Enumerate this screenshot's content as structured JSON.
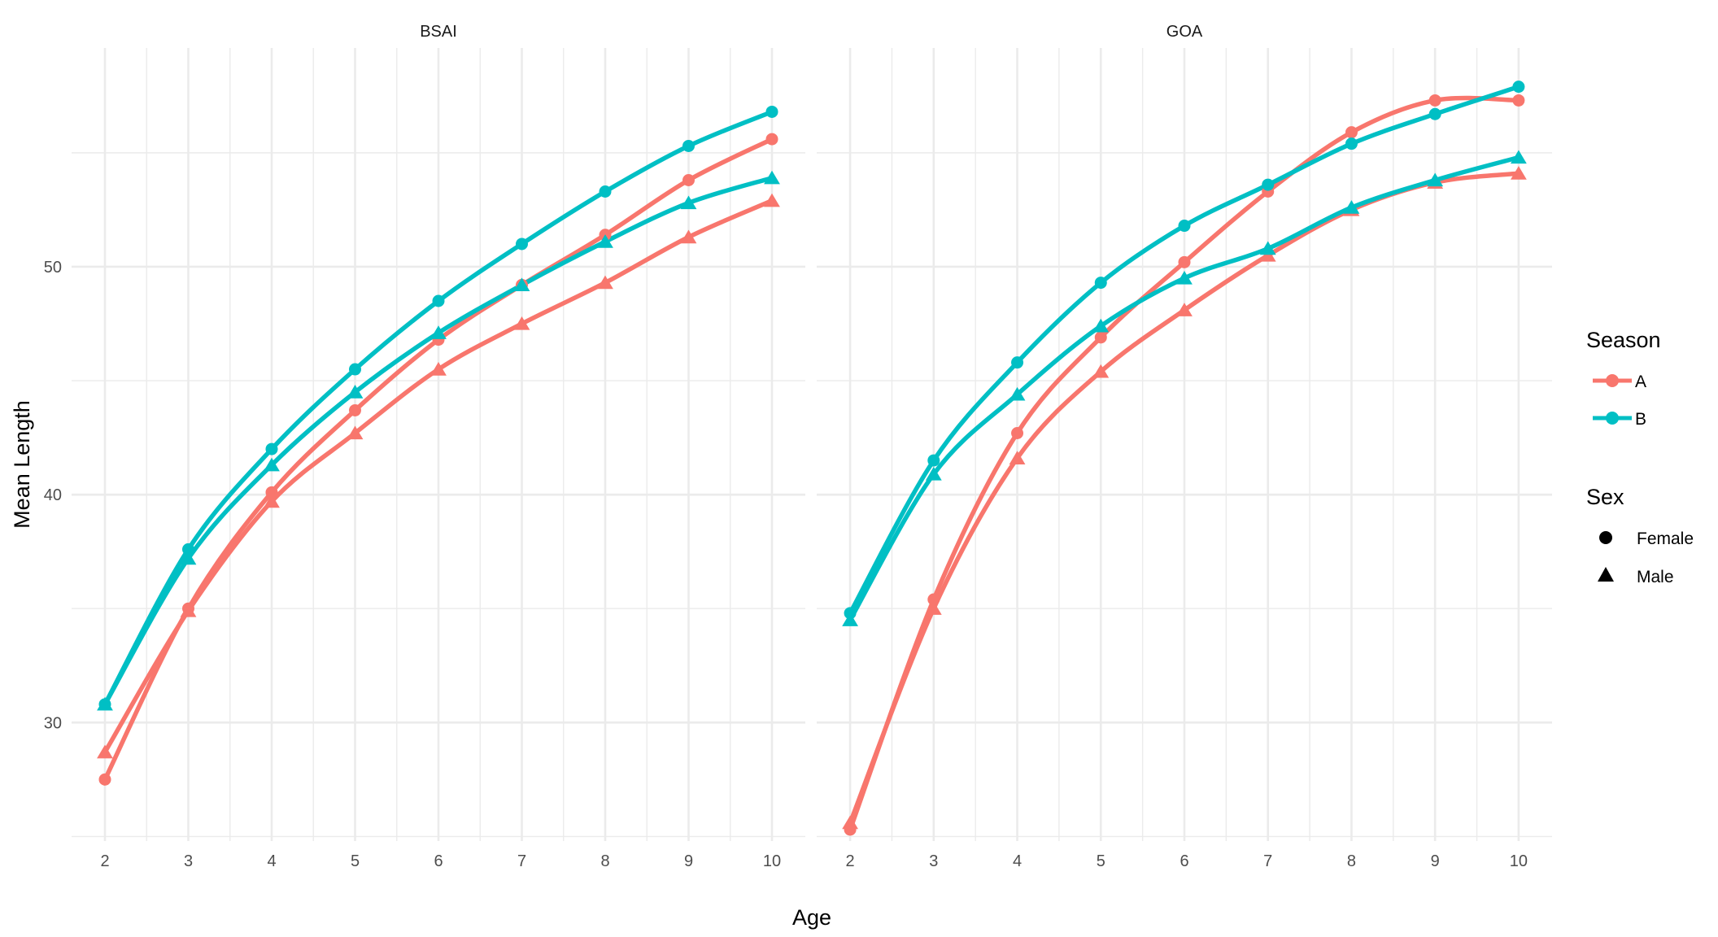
{
  "chart_data": {
    "type": "line",
    "facets": [
      "BSAI",
      "GOA"
    ],
    "x": [
      2,
      3,
      4,
      5,
      6,
      7,
      8,
      9,
      10
    ],
    "xlabel": "Age",
    "ylabel": "Mean Length",
    "xticks": [
      2,
      3,
      4,
      5,
      6,
      7,
      8,
      9,
      10
    ],
    "yticks": [
      30,
      40,
      50
    ],
    "xlim": [
      1.6,
      10.4
    ],
    "ylim": [
      24.8,
      59.6
    ],
    "grid": true,
    "legend_placement": "right",
    "colors": {
      "A": "#F8766D",
      "B": "#00BFC4"
    },
    "legend": {
      "season_title": "Season",
      "season_entries": [
        "A",
        "B"
      ],
      "sex_title": "Sex",
      "sex_entries": [
        "Female",
        "Male"
      ]
    },
    "series": [
      {
        "facet": "BSAI",
        "season": "A",
        "sex": "Female",
        "values": [
          27.5,
          35.0,
          40.1,
          43.7,
          46.8,
          49.2,
          51.4,
          53.8,
          55.6
        ]
      },
      {
        "facet": "BSAI",
        "season": "A",
        "sex": "Male",
        "values": [
          28.7,
          34.9,
          39.7,
          42.7,
          45.5,
          47.5,
          49.3,
          51.3,
          52.9
        ]
      },
      {
        "facet": "BSAI",
        "season": "B",
        "sex": "Female",
        "values": [
          30.8,
          37.6,
          42.0,
          45.5,
          48.5,
          51.0,
          53.3,
          55.3,
          56.8
        ]
      },
      {
        "facet": "BSAI",
        "season": "B",
        "sex": "Male",
        "values": [
          30.8,
          37.2,
          41.3,
          44.5,
          47.1,
          49.2,
          51.1,
          52.8,
          53.9
        ]
      },
      {
        "facet": "GOA",
        "season": "A",
        "sex": "Female",
        "values": [
          25.3,
          35.4,
          42.7,
          46.9,
          50.2,
          53.3,
          55.9,
          57.3,
          57.3
        ]
      },
      {
        "facet": "GOA",
        "season": "A",
        "sex": "Male",
        "values": [
          25.6,
          35.0,
          41.6,
          45.4,
          48.1,
          50.5,
          52.5,
          53.7,
          54.1
        ]
      },
      {
        "facet": "GOA",
        "season": "B",
        "sex": "Female",
        "values": [
          34.8,
          41.5,
          45.8,
          49.3,
          51.8,
          53.6,
          55.4,
          56.7,
          57.9
        ]
      },
      {
        "facet": "GOA",
        "season": "B",
        "sex": "Male",
        "values": [
          34.5,
          40.9,
          44.4,
          47.4,
          49.5,
          50.8,
          52.6,
          53.8,
          54.8
        ]
      }
    ]
  }
}
